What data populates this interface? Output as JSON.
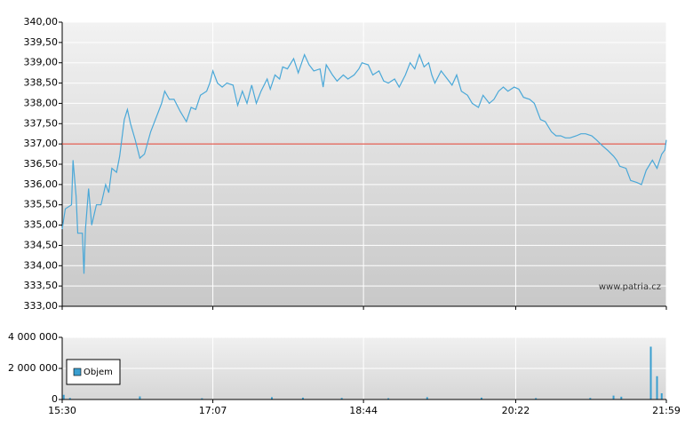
{
  "chart_data": [
    {
      "type": "line",
      "watermark": "www.patria.cz",
      "color": "#4aa8d8",
      "reference_line": {
        "value": 337,
        "color": "#e03a2a"
      },
      "xlim": [
        "15:30",
        "21:59"
      ],
      "ylim": [
        333,
        340
      ],
      "yticks": [
        {
          "value": 333,
          "label": "333,00"
        },
        {
          "value": 333.5,
          "label": "333,50"
        },
        {
          "value": 334,
          "label": "334,00"
        },
        {
          "value": 334.5,
          "label": "334,50"
        },
        {
          "value": 335,
          "label": "335,00"
        },
        {
          "value": 335.5,
          "label": "335,50"
        },
        {
          "value": 336,
          "label": "336,00"
        },
        {
          "value": 336.5,
          "label": "336,50"
        },
        {
          "value": 337,
          "label": "337,00"
        },
        {
          "value": 337.5,
          "label": "337,50"
        },
        {
          "value": 338,
          "label": "338,00"
        },
        {
          "value": 338.5,
          "label": "338,50"
        },
        {
          "value": 339,
          "label": "339,00"
        },
        {
          "value": 339.5,
          "label": "339,50"
        },
        {
          "value": 340,
          "label": "340,00"
        }
      ],
      "grid": true,
      "x": [
        "15:30",
        "15:32",
        "15:36",
        "15:37",
        "15:39",
        "15:40",
        "15:43",
        "15:44",
        "15:45",
        "15:47",
        "15:49",
        "15:52",
        "15:55",
        "15:58",
        "16:00",
        "16:02",
        "16:05",
        "16:07",
        "16:10",
        "16:12",
        "16:14",
        "16:17",
        "16:20",
        "16:23",
        "16:27",
        "16:32",
        "16:34",
        "16:36",
        "16:39",
        "16:42",
        "16:46",
        "16:50",
        "16:53",
        "16:56",
        "16:59",
        "17:03",
        "17:05",
        "17:07",
        "17:10",
        "17:13",
        "17:16",
        "17:20",
        "17:23",
        "17:26",
        "17:29",
        "17:32",
        "17:35",
        "17:38",
        "17:42",
        "17:44",
        "17:47",
        "17:50",
        "17:52",
        "17:55",
        "17:59",
        "18:02",
        "18:06",
        "18:09",
        "18:12",
        "18:16",
        "18:18",
        "18:20",
        "18:24",
        "18:27",
        "18:31",
        "18:34",
        "18:38",
        "18:41",
        "18:43",
        "18:47",
        "18:50",
        "18:54",
        "18:57",
        "19:00",
        "19:04",
        "19:07",
        "19:11",
        "19:14",
        "19:17",
        "19:20",
        "19:23",
        "19:26",
        "19:28",
        "19:30",
        "19:34",
        "19:37",
        "19:41",
        "19:44",
        "19:47",
        "19:51",
        "19:54",
        "19:58",
        "20:01",
        "20:05",
        "20:08",
        "20:11",
        "20:14",
        "20:17",
        "20:21",
        "20:24",
        "20:27",
        "20:31",
        "20:34",
        "20:38",
        "20:41",
        "20:45",
        "20:48",
        "20:51",
        "20:54",
        "20:57",
        "21:01",
        "21:04",
        "21:07",
        "21:11",
        "21:14",
        "21:18",
        "21:21",
        "21:25",
        "21:27",
        "21:29",
        "21:33",
        "21:36",
        "21:40",
        "21:43",
        "21:46",
        "21:50",
        "21:53",
        "21:56",
        "21:58",
        "21:59"
      ],
      "values": [
        334.9,
        335.4,
        335.5,
        336.6,
        335.7,
        334.8,
        334.8,
        333.8,
        334.9,
        335.9,
        335.0,
        335.5,
        335.5,
        336.0,
        335.8,
        336.4,
        336.3,
        336.7,
        337.6,
        337.85,
        337.5,
        337.1,
        336.65,
        336.75,
        337.3,
        337.8,
        338.0,
        338.3,
        338.1,
        338.1,
        337.8,
        337.55,
        337.9,
        337.85,
        338.2,
        338.3,
        338.5,
        338.8,
        338.5,
        338.4,
        338.5,
        338.45,
        337.95,
        338.3,
        338.0,
        338.45,
        338.0,
        338.3,
        338.6,
        338.35,
        338.7,
        338.6,
        338.9,
        338.85,
        339.1,
        338.75,
        339.2,
        338.95,
        338.8,
        338.85,
        338.4,
        338.95,
        338.7,
        338.55,
        338.7,
        338.6,
        338.7,
        338.85,
        339.0,
        338.95,
        338.7,
        338.8,
        338.55,
        338.5,
        338.6,
        338.4,
        338.7,
        339.0,
        338.85,
        339.2,
        338.9,
        339.0,
        338.7,
        338.5,
        338.8,
        338.65,
        338.45,
        338.7,
        338.3,
        338.2,
        338.0,
        337.9,
        338.2,
        338.0,
        338.1,
        338.3,
        338.4,
        338.3,
        338.4,
        338.35,
        338.15,
        338.1,
        338.0,
        337.6,
        337.55,
        337.3,
        337.2,
        337.2,
        337.15,
        337.15,
        337.2,
        337.25,
        337.25,
        337.2,
        337.1,
        336.95,
        336.85,
        336.7,
        336.6,
        336.45,
        336.4,
        336.1,
        336.05,
        336.0,
        336.35,
        336.6,
        336.4,
        336.75,
        336.85,
        337.1
      ]
    },
    {
      "type": "bar",
      "xlim": [
        "15:30",
        "21:59"
      ],
      "xticks": [
        "15:30",
        "17:07",
        "18:44",
        "20:22",
        "21:59"
      ],
      "ylim": [
        0,
        4000000
      ],
      "yticks": [
        0,
        {
          "value": 2000000,
          "label": "2 000 000"
        },
        {
          "value": 4000000,
          "label": "4 000 000"
        }
      ],
      "grid": true,
      "legend": "left",
      "x": [
        "15:31",
        "15:35",
        "16:20",
        "17:00",
        "17:45",
        "18:05",
        "18:30",
        "19:00",
        "19:25",
        "20:00",
        "20:35",
        "21:10",
        "21:25",
        "21:30",
        "21:49",
        "21:53",
        "21:56"
      ],
      "series": [
        {
          "name": "Objem",
          "color": "#3a9fd0",
          "values": [
            300000,
            100000,
            200000,
            80000,
            150000,
            120000,
            100000,
            80000,
            150000,
            120000,
            90000,
            100000,
            250000,
            180000,
            3400000,
            1500000,
            400000
          ]
        }
      ]
    }
  ]
}
